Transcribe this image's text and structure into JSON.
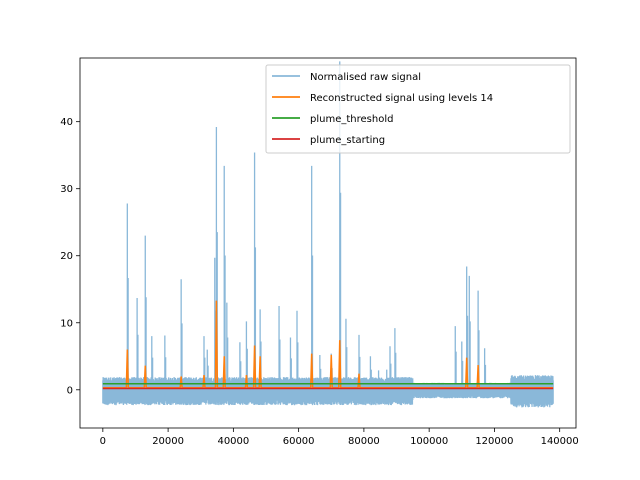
{
  "chart_data": {
    "type": "line",
    "title": "",
    "xlabel": "",
    "ylabel": "",
    "xlim": [
      -7000,
      145000
    ],
    "ylim": [
      -5.7,
      49.5
    ],
    "x_ticks": [
      0,
      20000,
      40000,
      60000,
      80000,
      100000,
      120000,
      140000
    ],
    "x_tick_labels": [
      "0",
      "20000",
      "40000",
      "60000",
      "80000",
      "100000",
      "120000",
      "140000"
    ],
    "y_ticks": [
      0,
      10,
      20,
      30,
      40
    ],
    "y_tick_labels": [
      "0",
      "10",
      "20",
      "30",
      "40"
    ],
    "grid": false,
    "legend_position": "top-right",
    "series": [
      {
        "name": "Normalised raw signal",
        "color": "#8ab8d9",
        "x_range": [
          0,
          138000
        ],
        "baseline_band": [
          -1.5,
          1.2
        ],
        "peaks": [
          {
            "x": 7500,
            "y": 27.8
          },
          {
            "x": 10500,
            "y": 13.7
          },
          {
            "x": 13000,
            "y": 23.0
          },
          {
            "x": 15000,
            "y": 8.0
          },
          {
            "x": 19000,
            "y": 8.1
          },
          {
            "x": 24000,
            "y": 16.5
          },
          {
            "x": 31000,
            "y": 8.0
          },
          {
            "x": 32000,
            "y": 6.0
          },
          {
            "x": 34300,
            "y": 19.7
          },
          {
            "x": 34800,
            "y": 39.2
          },
          {
            "x": 37200,
            "y": 33.4
          },
          {
            "x": 38000,
            "y": 13.0
          },
          {
            "x": 42000,
            "y": 7.1
          },
          {
            "x": 44000,
            "y": 10.2
          },
          {
            "x": 46500,
            "y": 35.4
          },
          {
            "x": 48200,
            "y": 12.0
          },
          {
            "x": 54000,
            "y": 12.5
          },
          {
            "x": 57500,
            "y": 7.8
          },
          {
            "x": 59500,
            "y": 11.8
          },
          {
            "x": 64000,
            "y": 33.4
          },
          {
            "x": 66500,
            "y": 5.2
          },
          {
            "x": 70000,
            "y": 5.4
          },
          {
            "x": 72600,
            "y": 49.0
          },
          {
            "x": 74500,
            "y": 10.6
          },
          {
            "x": 78500,
            "y": 8.2
          },
          {
            "x": 82000,
            "y": 5.0
          },
          {
            "x": 84500,
            "y": 2.9
          },
          {
            "x": 87000,
            "y": 3.0
          },
          {
            "x": 88000,
            "y": 6.5
          },
          {
            "x": 89500,
            "y": 9.2
          },
          {
            "x": 108000,
            "y": 9.5
          },
          {
            "x": 110000,
            "y": 7.2
          },
          {
            "x": 111500,
            "y": 18.4
          },
          {
            "x": 112300,
            "y": 17.0
          },
          {
            "x": 115000,
            "y": 14.8
          },
          {
            "x": 117000,
            "y": 6.2
          }
        ]
      },
      {
        "name": "Reconstructed signal using levels 14",
        "color": "#ff7f0e",
        "baseline": 0.3,
        "peaks": [
          {
            "x": 7500,
            "y": 6.0
          },
          {
            "x": 13000,
            "y": 3.6
          },
          {
            "x": 24000,
            "y": 2.0
          },
          {
            "x": 31000,
            "y": 2.2
          },
          {
            "x": 34800,
            "y": 13.3
          },
          {
            "x": 37200,
            "y": 5.0
          },
          {
            "x": 44000,
            "y": 2.2
          },
          {
            "x": 46500,
            "y": 6.6
          },
          {
            "x": 48200,
            "y": 5.0
          },
          {
            "x": 64000,
            "y": 5.4
          },
          {
            "x": 70000,
            "y": 5.2
          },
          {
            "x": 72600,
            "y": 7.4
          },
          {
            "x": 78500,
            "y": 2.4
          },
          {
            "x": 111500,
            "y": 4.8
          },
          {
            "x": 115000,
            "y": 3.7
          }
        ]
      },
      {
        "name": "plume_threshold",
        "color": "#2ca02c",
        "x": [
          0,
          138000
        ],
        "y": [
          0.9,
          0.9
        ]
      },
      {
        "name": "plume_starting",
        "color": "#d62728",
        "x": [
          0,
          138000
        ],
        "y": [
          0.2,
          0.2
        ]
      }
    ]
  }
}
